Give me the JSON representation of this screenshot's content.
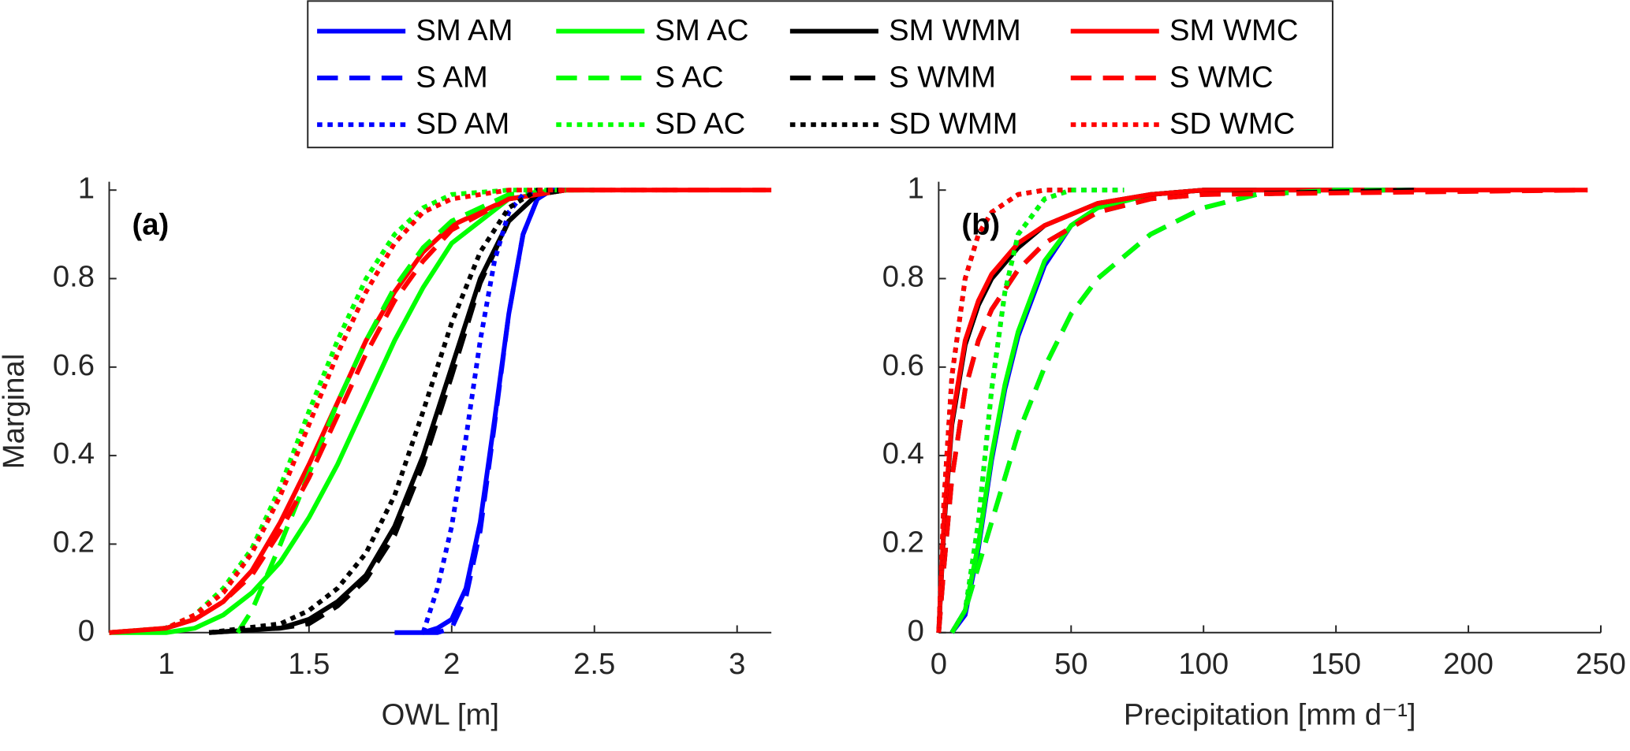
{
  "chart_data": [
    {
      "type": "line",
      "panel_label": "(a)",
      "x_label": "OWL [m]",
      "y_label": "Marginal",
      "xlim": [
        0.8,
        3.12
      ],
      "ylim": [
        0,
        1
      ],
      "xticks": [
        1,
        1.5,
        2,
        2.5,
        3
      ],
      "yticks": [
        0,
        0.2,
        0.4,
        0.6,
        0.8,
        1
      ],
      "series": [
        {
          "name": "SM AM",
          "color": "#0000ff",
          "dash": "solid",
          "x": [
            1.8,
            1.9,
            1.95,
            2.0,
            2.05,
            2.1,
            2.15,
            2.2,
            2.25,
            2.3,
            2.35,
            2.4
          ],
          "values": [
            0,
            0,
            0.01,
            0.03,
            0.1,
            0.25,
            0.48,
            0.72,
            0.9,
            0.98,
            1,
            1
          ]
        },
        {
          "name": "SM AC",
          "color": "#00ff00",
          "dash": "solid",
          "x": [
            0.8,
            1.0,
            1.1,
            1.2,
            1.3,
            1.4,
            1.5,
            1.6,
            1.7,
            1.8,
            1.9,
            2.0,
            2.2,
            2.4,
            2.5
          ],
          "values": [
            0,
            0,
            0.01,
            0.04,
            0.09,
            0.16,
            0.26,
            0.38,
            0.52,
            0.66,
            0.78,
            0.88,
            0.98,
            1,
            1
          ]
        },
        {
          "name": "SM WMM",
          "color": "#000000",
          "dash": "solid",
          "x": [
            1.15,
            1.4,
            1.5,
            1.6,
            1.7,
            1.8,
            1.9,
            2.0,
            2.1,
            2.2,
            2.3,
            2.4
          ],
          "values": [
            0,
            0.01,
            0.03,
            0.07,
            0.13,
            0.24,
            0.4,
            0.6,
            0.8,
            0.93,
            0.99,
            1
          ]
        },
        {
          "name": "SM WMC",
          "color": "#ff0000",
          "dash": "solid",
          "x": [
            0.8,
            1.0,
            1.1,
            1.2,
            1.3,
            1.4,
            1.5,
            1.6,
            1.7,
            1.8,
            1.9,
            2.0,
            2.2,
            2.4,
            3.1
          ],
          "values": [
            0,
            0.01,
            0.03,
            0.07,
            0.14,
            0.25,
            0.38,
            0.52,
            0.66,
            0.77,
            0.86,
            0.92,
            0.98,
            1,
            1
          ]
        },
        {
          "name": "S AM",
          "color": "#0000ff",
          "dash": "dashed",
          "x": [
            1.9,
            1.95,
            2.0,
            2.05,
            2.1,
            2.15,
            2.2,
            2.25,
            2.3,
            2.35,
            2.4
          ],
          "values": [
            0,
            0,
            0.01,
            0.08,
            0.23,
            0.47,
            0.72,
            0.9,
            0.98,
            1,
            1
          ]
        },
        {
          "name": "S AC",
          "color": "#00ff00",
          "dash": "dashed",
          "x": [
            1.25,
            1.3,
            1.4,
            1.5,
            1.6,
            1.7,
            1.8,
            1.9,
            2.0,
            2.2,
            2.4,
            2.5
          ],
          "values": [
            0,
            0.05,
            0.2,
            0.36,
            0.52,
            0.66,
            0.78,
            0.87,
            0.93,
            0.99,
            1,
            1
          ]
        },
        {
          "name": "S WMM",
          "color": "#000000",
          "dash": "dashed",
          "x": [
            1.15,
            1.4,
            1.5,
            1.6,
            1.7,
            1.8,
            1.9,
            2.0,
            2.1,
            2.2,
            2.3,
            2.4
          ],
          "values": [
            0,
            0.01,
            0.02,
            0.06,
            0.12,
            0.22,
            0.38,
            0.58,
            0.79,
            0.93,
            0.99,
            1
          ]
        },
        {
          "name": "S WMC",
          "color": "#ff0000",
          "dash": "dashed",
          "x": [
            0.8,
            1.0,
            1.1,
            1.2,
            1.3,
            1.4,
            1.5,
            1.6,
            1.7,
            1.8,
            1.9,
            2.0,
            2.2,
            2.4,
            3.12
          ],
          "values": [
            0,
            0.01,
            0.03,
            0.07,
            0.13,
            0.23,
            0.35,
            0.49,
            0.63,
            0.75,
            0.84,
            0.91,
            0.98,
            1,
            1
          ]
        },
        {
          "name": "SD AM",
          "color": "#0000ff",
          "dash": "dotted",
          "x": [
            1.9,
            1.95,
            2.0,
            2.05,
            2.1,
            2.15,
            2.2,
            2.25,
            2.3,
            2.35,
            2.4
          ],
          "values": [
            0,
            0.1,
            0.24,
            0.44,
            0.66,
            0.84,
            0.95,
            0.99,
            1,
            1,
            1
          ]
        },
        {
          "name": "SD AC",
          "color": "#00ff00",
          "dash": "dotted",
          "x": [
            0.8,
            1.0,
            1.1,
            1.2,
            1.3,
            1.4,
            1.5,
            1.6,
            1.7,
            1.8,
            1.9,
            2.0,
            2.2,
            2.4
          ],
          "values": [
            0,
            0.01,
            0.04,
            0.1,
            0.19,
            0.33,
            0.5,
            0.66,
            0.8,
            0.9,
            0.96,
            0.99,
            1,
            1
          ]
        },
        {
          "name": "SD WMM",
          "color": "#000000",
          "dash": "dotted",
          "x": [
            1.15,
            1.4,
            1.5,
            1.6,
            1.7,
            1.8,
            1.9,
            2.0,
            2.1,
            2.2,
            2.3,
            2.4
          ],
          "values": [
            0,
            0.02,
            0.05,
            0.1,
            0.18,
            0.31,
            0.5,
            0.7,
            0.86,
            0.96,
            1,
            1
          ]
        },
        {
          "name": "SD WMC",
          "color": "#ff0000",
          "dash": "dotted",
          "x": [
            0.8,
            1.0,
            1.1,
            1.2,
            1.3,
            1.4,
            1.5,
            1.6,
            1.7,
            1.8,
            1.9,
            2.0,
            2.2,
            2.4,
            2.8
          ],
          "values": [
            0,
            0.01,
            0.04,
            0.09,
            0.18,
            0.31,
            0.47,
            0.63,
            0.77,
            0.88,
            0.95,
            0.98,
            1,
            1,
            1
          ]
        }
      ]
    },
    {
      "type": "line",
      "panel_label": "(b)",
      "x_label": "Precipitation [mm d⁻¹]",
      "xlim": [
        0,
        250
      ],
      "ylim": [
        0,
        1
      ],
      "xticks": [
        0,
        50,
        100,
        150,
        200,
        250
      ],
      "yticks": [
        0,
        0.2,
        0.4,
        0.6,
        0.8,
        1
      ],
      "series": [
        {
          "name": "SM AM",
          "color": "#0000ff",
          "dash": "solid",
          "x": [
            5,
            10,
            15,
            20,
            25,
            30,
            40,
            50,
            60,
            80,
            100,
            120
          ],
          "values": [
            0,
            0.04,
            0.19,
            0.39,
            0.55,
            0.67,
            0.83,
            0.92,
            0.96,
            0.99,
            1,
            1
          ]
        },
        {
          "name": "SM AC",
          "color": "#00ff00",
          "dash": "solid",
          "x": [
            5,
            10,
            15,
            20,
            25,
            30,
            40,
            50,
            60,
            80,
            100,
            120
          ],
          "values": [
            0,
            0.05,
            0.2,
            0.4,
            0.56,
            0.68,
            0.84,
            0.92,
            0.96,
            0.99,
            1,
            1
          ]
        },
        {
          "name": "SM WMM",
          "color": "#000000",
          "dash": "solid",
          "x": [
            0,
            2,
            5,
            10,
            15,
            20,
            30,
            40,
            60,
            80,
            100,
            180
          ],
          "values": [
            0,
            0.24,
            0.47,
            0.65,
            0.74,
            0.8,
            0.87,
            0.92,
            0.97,
            0.99,
            1,
            1
          ]
        },
        {
          "name": "SM WMC",
          "color": "#ff0000",
          "dash": "solid",
          "x": [
            0,
            2,
            5,
            10,
            15,
            20,
            30,
            40,
            60,
            80,
            100,
            245
          ],
          "values": [
            0,
            0.25,
            0.48,
            0.66,
            0.75,
            0.81,
            0.88,
            0.92,
            0.97,
            0.99,
            1,
            1
          ]
        },
        {
          "name": "S AM",
          "color": "#0000ff",
          "dash": "dashed",
          "x": [
            5,
            10,
            20,
            30,
            40,
            50,
            60,
            80,
            100,
            120,
            150,
            178
          ],
          "values": [
            0,
            0.05,
            0.25,
            0.45,
            0.6,
            0.72,
            0.8,
            0.9,
            0.96,
            0.99,
            1,
            1
          ]
        },
        {
          "name": "S AC",
          "color": "#00ff00",
          "dash": "dashed",
          "x": [
            5,
            10,
            20,
            30,
            40,
            50,
            60,
            80,
            100,
            120,
            150,
            178
          ],
          "values": [
            0,
            0.05,
            0.25,
            0.45,
            0.6,
            0.72,
            0.8,
            0.9,
            0.96,
            0.99,
            1,
            1
          ]
        },
        {
          "name": "S WMM",
          "color": "#000000",
          "dash": "dashed",
          "x": [
            0,
            2,
            5,
            10,
            15,
            20,
            30,
            40,
            60,
            80,
            100,
            180
          ],
          "values": [
            0,
            0.15,
            0.35,
            0.55,
            0.66,
            0.73,
            0.82,
            0.88,
            0.95,
            0.98,
            0.99,
            1
          ]
        },
        {
          "name": "S WMC",
          "color": "#ff0000",
          "dash": "dashed",
          "x": [
            0,
            2,
            5,
            10,
            15,
            20,
            30,
            40,
            60,
            80,
            100,
            245
          ],
          "values": [
            0,
            0.15,
            0.35,
            0.55,
            0.66,
            0.73,
            0.82,
            0.88,
            0.95,
            0.98,
            0.99,
            1
          ]
        },
        {
          "name": "SD AM",
          "color": "#0000ff",
          "dash": "dotted",
          "x": [
            5,
            10,
            15,
            20,
            25,
            30,
            40,
            50,
            70
          ],
          "values": [
            0,
            0.05,
            0.25,
            0.55,
            0.77,
            0.9,
            0.98,
            1,
            1
          ]
        },
        {
          "name": "SD AC",
          "color": "#00ff00",
          "dash": "dotted",
          "x": [
            5,
            10,
            15,
            20,
            25,
            30,
            40,
            50,
            70
          ],
          "values": [
            0,
            0.05,
            0.25,
            0.55,
            0.77,
            0.9,
            0.98,
            1,
            1
          ]
        },
        {
          "name": "SD WMM",
          "color": "#000000",
          "dash": "dotted",
          "x": [
            0,
            2,
            5,
            10,
            15,
            20,
            30,
            40,
            50
          ],
          "values": [
            0,
            0.3,
            0.58,
            0.8,
            0.9,
            0.95,
            0.99,
            1,
            1
          ]
        },
        {
          "name": "SD WMC",
          "color": "#ff0000",
          "dash": "dotted",
          "x": [
            0,
            2,
            5,
            10,
            15,
            20,
            30,
            40,
            50
          ],
          "values": [
            0,
            0.3,
            0.58,
            0.8,
            0.9,
            0.95,
            0.99,
            1,
            1
          ]
        }
      ]
    }
  ]
}
